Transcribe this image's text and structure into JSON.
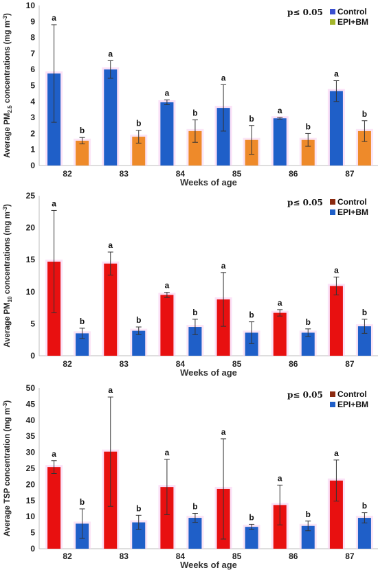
{
  "chart_data": [
    {
      "type": "bar",
      "categories": [
        "82",
        "83",
        "84",
        "85",
        "86",
        "87"
      ],
      "xlabel": "Weeks of age",
      "ylabel": {
        "prefix": "Average PM",
        "sub": "2.5",
        "suffix": " concentrations (mg m",
        "sup": "-3",
        "end": ")"
      },
      "ylim": [
        0,
        10
      ],
      "yticks": [
        0,
        1,
        2,
        3,
        4,
        5,
        6,
        7,
        8,
        9,
        10
      ],
      "significance": "p≤ 0.05",
      "legend_position": "top-right",
      "series": [
        {
          "name": "Control",
          "color": "#1f5fc8",
          "legend_color": "#3a4fd0",
          "values": [
            5.75,
            6.0,
            3.95,
            3.6,
            2.95,
            4.65
          ],
          "error": [
            3.05,
            0.55,
            0.15,
            1.45,
            0.05,
            0.65
          ],
          "letters": [
            "a",
            "a",
            "a",
            "a",
            "a",
            "a"
          ]
        },
        {
          "name": "EPI+BM",
          "color": "#ee8a2a",
          "legend_color": "#a3b52a",
          "values": [
            1.55,
            1.8,
            2.15,
            1.6,
            1.6,
            2.15
          ],
          "error": [
            0.2,
            0.4,
            0.7,
            0.9,
            0.4,
            0.65
          ],
          "letters": [
            "b",
            "b",
            "b",
            "b",
            "b",
            "b"
          ]
        }
      ]
    },
    {
      "type": "bar",
      "categories": [
        "82",
        "83",
        "84",
        "85",
        "86",
        "87"
      ],
      "xlabel": "Weeks of age",
      "ylabel": {
        "prefix": "Average PM",
        "sub": "10",
        "suffix": " concentrations (mg m",
        "sup": "-3",
        "end": ")"
      },
      "ylim": [
        0,
        25
      ],
      "yticks": [
        0,
        5,
        10,
        15,
        20,
        25
      ],
      "significance": "p≤ 0.05",
      "legend_position": "top-right",
      "series": [
        {
          "name": "Control",
          "color": "#e81010",
          "legend_color": "#8b2a10",
          "values": [
            14.7,
            14.4,
            9.5,
            8.8,
            6.7,
            10.9
          ],
          "error": [
            8.0,
            1.8,
            0.4,
            4.2,
            0.5,
            1.4
          ],
          "letters": [
            "a",
            "a",
            "a",
            "a",
            "a",
            "a"
          ]
        },
        {
          "name": "EPI+BM",
          "color": "#1f5fc8",
          "legend_color": "#1f5fc8",
          "values": [
            3.5,
            3.9,
            4.5,
            3.6,
            3.6,
            4.6
          ],
          "error": [
            0.8,
            0.6,
            1.2,
            1.7,
            0.6,
            1.1
          ],
          "letters": [
            "b",
            "b",
            "b",
            "b",
            "b",
            "b"
          ]
        }
      ]
    },
    {
      "type": "bar",
      "categories": [
        "82",
        "83",
        "84",
        "85",
        "86",
        "87"
      ],
      "xlabel": "Weeks of age",
      "ylabel": {
        "prefix": "Average TSP concentration (mg m",
        "sub": "",
        "suffix": "",
        "sup": "-3",
        "end": ")"
      },
      "ylim": [
        0,
        50
      ],
      "yticks": [
        0,
        5,
        10,
        15,
        20,
        25,
        30,
        35,
        40,
        45,
        50
      ],
      "significance": "p≤ 0.05",
      "legend_position": "top-right",
      "series": [
        {
          "name": "Control",
          "color": "#e81010",
          "legend_color": "#8b2a10",
          "values": [
            25.4,
            30.2,
            19.2,
            18.6,
            13.6,
            21.2
          ],
          "error": [
            2.0,
            17.0,
            8.6,
            15.6,
            6.2,
            6.4
          ],
          "letters": [
            "a",
            "a",
            "a",
            "a",
            "a",
            "a"
          ]
        },
        {
          "name": "EPI+BM",
          "color": "#1f5fc8",
          "legend_color": "#1f5fc8",
          "values": [
            7.8,
            8.2,
            9.6,
            6.8,
            7.1,
            9.6
          ],
          "error": [
            4.6,
            2.2,
            1.4,
            0.8,
            1.5,
            1.6
          ],
          "letters": [
            "b",
            "b",
            "b",
            "b",
            "b",
            "b"
          ]
        }
      ]
    }
  ]
}
